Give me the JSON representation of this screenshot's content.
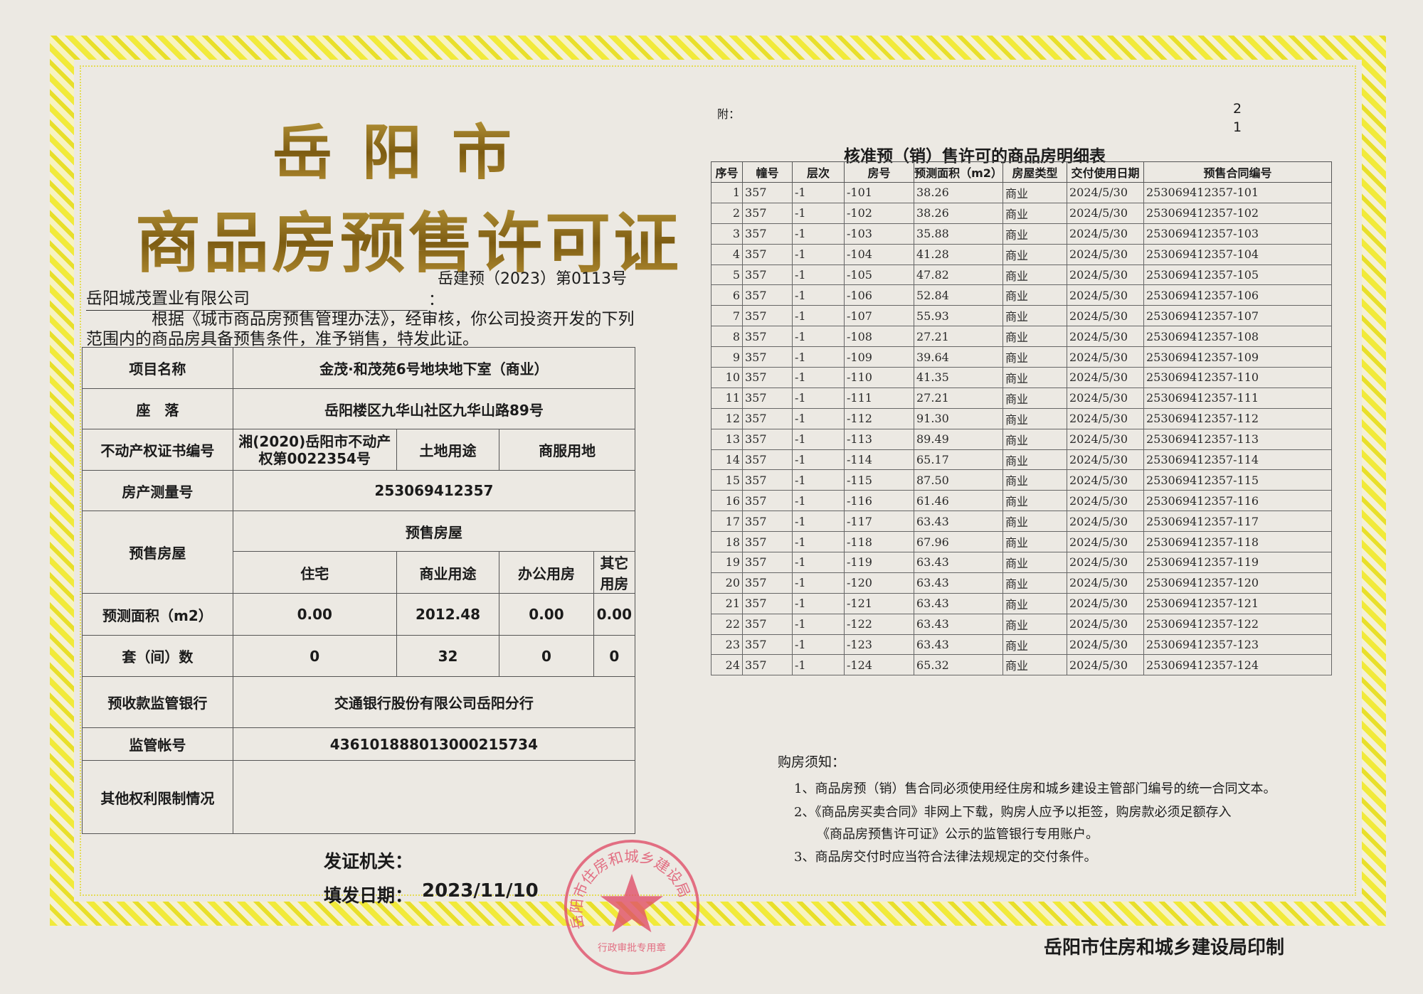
{
  "title_city": "岳阳市",
  "title_doc": "商品房预售许可证",
  "permit_no": "岳建预（2023）第0113号",
  "company": "岳阳城茂置业有限公司",
  "colon": "：",
  "intro": "根据《城市商品房预售管理办法》，经审核，你公司投资开发的下列范围内的商品房具备预售条件，准予销售，特发此证。",
  "left_table": {
    "project_label": "项目名称",
    "project": "金茂·和茂苑6号地块地下室（商业）",
    "location_label": "座　落",
    "location": "岳阳楼区九华山社区九华山路89号",
    "cert_label": "不动产权证书编号",
    "cert": "湘(2020)岳阳市不动产权第0022354号",
    "land_use_label": "土地用途",
    "land_use": "商服用地",
    "survey_label": "房产测量号",
    "survey": "253069412357",
    "presale_label": "预售房屋",
    "presale_header": "预售房屋",
    "types": [
      "住宅",
      "商业用途",
      "办公用房",
      "其它用房"
    ],
    "area_label": "预测面积（m2）",
    "areas": [
      "0.00",
      "2012.48",
      "0.00",
      "0.00"
    ],
    "units_label": "套（间）数",
    "units": [
      "0",
      "32",
      "0",
      "0"
    ],
    "bank_label": "预收款监管银行",
    "bank": "交通银行股份有限公司岳阳分行",
    "account_label": "监管帐号",
    "account": "436101888013000215734",
    "restrictions_label": "其他权利限制情况",
    "restrictions": ""
  },
  "issuer_label": "发证机关：",
  "date_label": "填发日期：",
  "issue_date": "2023/11/10",
  "stamp": {
    "outer": "岳阳市住房和城乡建设局",
    "inner": "行政审批专用章",
    "color": "#e0506a"
  },
  "appendix_label": "附：",
  "page_numbers": [
    "2",
    "1"
  ],
  "detail_title": "核准预（销）售许可的商品房明细表",
  "detail_headers": [
    "序号",
    "幢号",
    "层次",
    "房号",
    "预测面积（m2）",
    "房屋类型",
    "交付使用日期",
    "预售合同编号"
  ],
  "detail_rows": [
    [
      "1",
      "357",
      "-1",
      "-101",
      "38.26",
      "商业",
      "2024/5/30",
      "253069412357-101"
    ],
    [
      "2",
      "357",
      "-1",
      "-102",
      "38.26",
      "商业",
      "2024/5/30",
      "253069412357-102"
    ],
    [
      "3",
      "357",
      "-1",
      "-103",
      "35.88",
      "商业",
      "2024/5/30",
      "253069412357-103"
    ],
    [
      "4",
      "357",
      "-1",
      "-104",
      "41.28",
      "商业",
      "2024/5/30",
      "253069412357-104"
    ],
    [
      "5",
      "357",
      "-1",
      "-105",
      "47.82",
      "商业",
      "2024/5/30",
      "253069412357-105"
    ],
    [
      "6",
      "357",
      "-1",
      "-106",
      "52.84",
      "商业",
      "2024/5/30",
      "253069412357-106"
    ],
    [
      "7",
      "357",
      "-1",
      "-107",
      "55.93",
      "商业",
      "2024/5/30",
      "253069412357-107"
    ],
    [
      "8",
      "357",
      "-1",
      "-108",
      "27.21",
      "商业",
      "2024/5/30",
      "253069412357-108"
    ],
    [
      "9",
      "357",
      "-1",
      "-109",
      "39.64",
      "商业",
      "2024/5/30",
      "253069412357-109"
    ],
    [
      "10",
      "357",
      "-1",
      "-110",
      "41.35",
      "商业",
      "2024/5/30",
      "253069412357-110"
    ],
    [
      "11",
      "357",
      "-1",
      "-111",
      "27.21",
      "商业",
      "2024/5/30",
      "253069412357-111"
    ],
    [
      "12",
      "357",
      "-1",
      "-112",
      "91.30",
      "商业",
      "2024/5/30",
      "253069412357-112"
    ],
    [
      "13",
      "357",
      "-1",
      "-113",
      "89.49",
      "商业",
      "2024/5/30",
      "253069412357-113"
    ],
    [
      "14",
      "357",
      "-1",
      "-114",
      "65.17",
      "商业",
      "2024/5/30",
      "253069412357-114"
    ],
    [
      "15",
      "357",
      "-1",
      "-115",
      "87.50",
      "商业",
      "2024/5/30",
      "253069412357-115"
    ],
    [
      "16",
      "357",
      "-1",
      "-116",
      "61.46",
      "商业",
      "2024/5/30",
      "253069412357-116"
    ],
    [
      "17",
      "357",
      "-1",
      "-117",
      "63.43",
      "商业",
      "2024/5/30",
      "253069412357-117"
    ],
    [
      "18",
      "357",
      "-1",
      "-118",
      "67.96",
      "商业",
      "2024/5/30",
      "253069412357-118"
    ],
    [
      "19",
      "357",
      "-1",
      "-119",
      "63.43",
      "商业",
      "2024/5/30",
      "253069412357-119"
    ],
    [
      "20",
      "357",
      "-1",
      "-120",
      "63.43",
      "商业",
      "2024/5/30",
      "253069412357-120"
    ],
    [
      "21",
      "357",
      "-1",
      "-121",
      "63.43",
      "商业",
      "2024/5/30",
      "253069412357-121"
    ],
    [
      "22",
      "357",
      "-1",
      "-122",
      "63.43",
      "商业",
      "2024/5/30",
      "253069412357-122"
    ],
    [
      "23",
      "357",
      "-1",
      "-123",
      "63.43",
      "商业",
      "2024/5/30",
      "253069412357-123"
    ],
    [
      "24",
      "357",
      "-1",
      "-124",
      "65.32",
      "商业",
      "2024/5/30",
      "253069412357-124"
    ]
  ],
  "notes_title": "购房须知：",
  "notes": [
    "1、商品房预（销）售合同必须使用经住房和城乡建设主管部门编号的统一合同文本。",
    "2、《商品房买卖合同》非网上下载，购房人应予以拒签，购房款必须足额存入",
    "《商品房预售许可证》公示的监管银行专用账户。",
    "3、商品房交付时应当符合法律法规规定的交付条件。"
  ],
  "printer": "岳阳市住房和城乡建设局印制"
}
